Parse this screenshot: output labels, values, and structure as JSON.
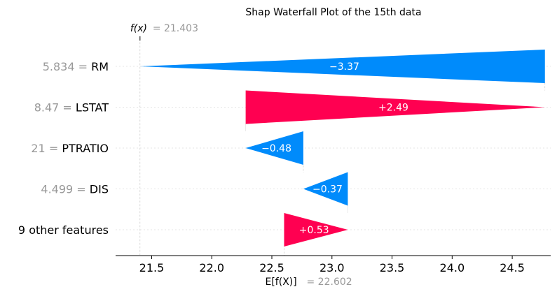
{
  "chart_data": {
    "type": "waterfall",
    "title": "Shap Waterfall Plot of the 15th data",
    "fx_label": "f(x)",
    "fx_value_text": "= 21.403",
    "fx_value": 21.403,
    "ex_label": "E[f(X)]",
    "ex_value_text": "= 22.602",
    "base_value": 22.602,
    "xlim": [
      21.2,
      24.82
    ],
    "xticks": [
      21.5,
      22.0,
      22.5,
      23.0,
      23.5,
      24.0,
      24.5
    ],
    "xtick_labels": [
      "21.5",
      "22.0",
      "22.5",
      "23.0",
      "23.5",
      "24.0",
      "24.5"
    ],
    "colors": {
      "positive": "#ff0051",
      "negative": "#008bfb",
      "grid": "#cccccc"
    },
    "features": [
      {
        "value_text": "5.834 =",
        "name": "RM",
        "shap": -3.37,
        "label": "−3.37"
      },
      {
        "value_text": "8.47 =",
        "name": "LSTAT",
        "shap": 2.49,
        "label": "+2.49"
      },
      {
        "value_text": "21 =",
        "name": "PTRATIO",
        "shap": -0.48,
        "label": "−0.48"
      },
      {
        "value_text": "4.499 =",
        "name": "DIS",
        "shap": -0.37,
        "label": "−0.37"
      },
      {
        "value_text": "",
        "name": "9 other features",
        "shap": 0.53,
        "label": "+0.53"
      }
    ]
  }
}
